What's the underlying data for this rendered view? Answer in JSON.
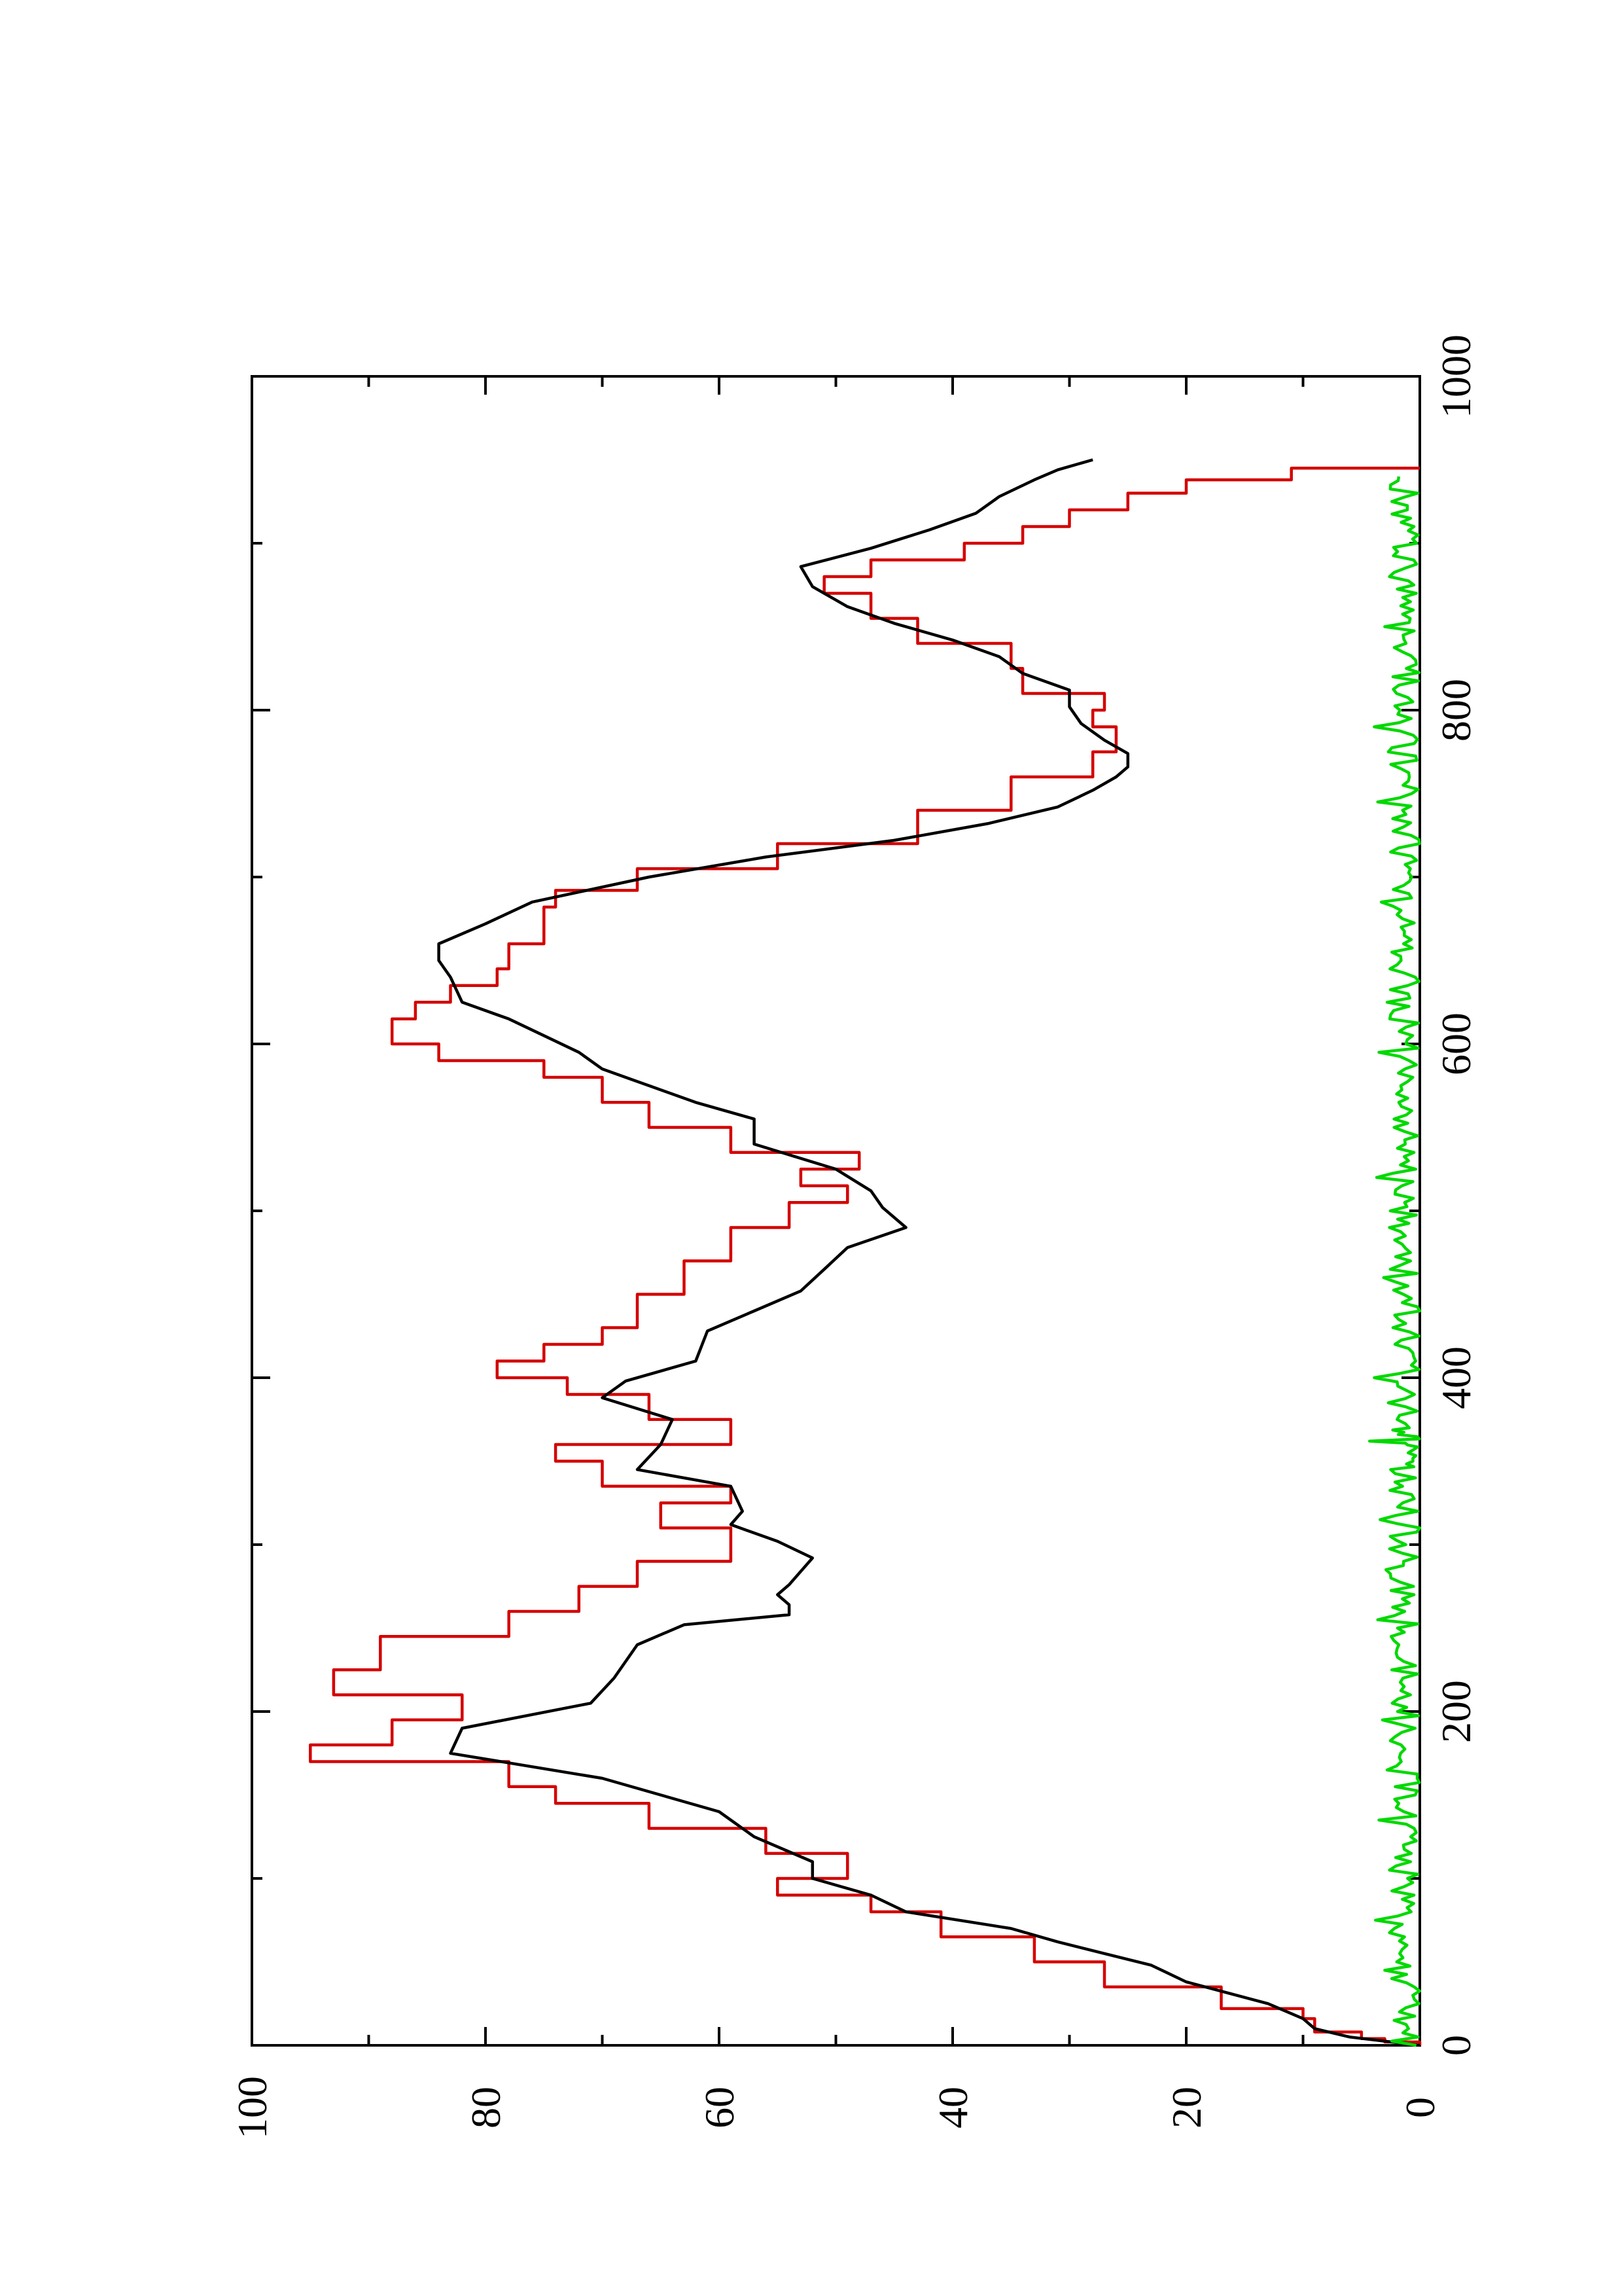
{
  "chart_data": {
    "type": "line",
    "orientation": "rotated-90-counterclockwise",
    "title": "",
    "xlabel": "",
    "ylabel": "",
    "xlim": [
      0,
      1000
    ],
    "ylim": [
      0,
      100
    ],
    "x_ticks": [
      0,
      200,
      400,
      600,
      800,
      1000
    ],
    "x_tick_labels": [
      "0",
      "200",
      "400",
      "600",
      "800",
      "1000"
    ],
    "x_minor_ticks": [
      100,
      300,
      500,
      700,
      900
    ],
    "y_ticks": [
      0,
      20,
      40,
      60,
      80,
      100
    ],
    "y_tick_labels": [
      "0",
      "20",
      "40",
      "60",
      "80",
      "100"
    ],
    "y_minor_ticks": [
      10,
      30,
      50,
      70,
      90
    ],
    "grid": false,
    "legend": "none",
    "series": [
      {
        "color": "#d40000",
        "style": "step",
        "points": [
          [
            0,
            0
          ],
          [
            2,
            3
          ],
          [
            4,
            5
          ],
          [
            8,
            9
          ],
          [
            16,
            10
          ],
          [
            22,
            17
          ],
          [
            35,
            27
          ],
          [
            50,
            33
          ],
          [
            65,
            41
          ],
          [
            80,
            47
          ],
          [
            90,
            55
          ],
          [
            100,
            49
          ],
          [
            115,
            56
          ],
          [
            130,
            66
          ],
          [
            145,
            74
          ],
          [
            155,
            78
          ],
          [
            170,
            95
          ],
          [
            180,
            88
          ],
          [
            195,
            82
          ],
          [
            210,
            93
          ],
          [
            225,
            89
          ],
          [
            245,
            78
          ],
          [
            260,
            72
          ],
          [
            275,
            67
          ],
          [
            290,
            59
          ],
          [
            300,
            59
          ],
          [
            310,
            65
          ],
          [
            325,
            59
          ],
          [
            335,
            70
          ],
          [
            350,
            74
          ],
          [
            360,
            59
          ],
          [
            375,
            66
          ],
          [
            390,
            73
          ],
          [
            400,
            79
          ],
          [
            410,
            75
          ],
          [
            420,
            70
          ],
          [
            430,
            67
          ],
          [
            440,
            67
          ],
          [
            450,
            63
          ],
          [
            470,
            59
          ],
          [
            485,
            59
          ],
          [
            490,
            54
          ],
          [
            505,
            49
          ],
          [
            515,
            53
          ],
          [
            525,
            48
          ],
          [
            535,
            59
          ],
          [
            550,
            66
          ],
          [
            565,
            70
          ],
          [
            580,
            75
          ],
          [
            590,
            84
          ],
          [
            600,
            88
          ],
          [
            615,
            86
          ],
          [
            625,
            83
          ],
          [
            635,
            79
          ],
          [
            645,
            78
          ],
          [
            660,
            75
          ],
          [
            670,
            75
          ],
          [
            682,
            74
          ],
          [
            692,
            67
          ],
          [
            705,
            55
          ],
          [
            720,
            43
          ],
          [
            740,
            35
          ],
          [
            760,
            28
          ],
          [
            775,
            26
          ],
          [
            790,
            28
          ],
          [
            800,
            27
          ],
          [
            810,
            34
          ],
          [
            825,
            35
          ],
          [
            840,
            43
          ],
          [
            855,
            47
          ],
          [
            870,
            51
          ],
          [
            880,
            47
          ],
          [
            890,
            39
          ],
          [
            900,
            34
          ],
          [
            910,
            30
          ],
          [
            920,
            25
          ],
          [
            930,
            20
          ],
          [
            938,
            11
          ],
          [
            945,
            0
          ]
        ]
      },
      {
        "color": "#000000",
        "style": "line",
        "points": [
          [
            0,
            0
          ],
          [
            5,
            6
          ],
          [
            10,
            9
          ],
          [
            16,
            10
          ],
          [
            25,
            13
          ],
          [
            38,
            20
          ],
          [
            48,
            23
          ],
          [
            55,
            27
          ],
          [
            62,
            31
          ],
          [
            70,
            35
          ],
          [
            80,
            44
          ],
          [
            90,
            47
          ],
          [
            100,
            52
          ],
          [
            110,
            52
          ],
          [
            125,
            57
          ],
          [
            140,
            60
          ],
          [
            160,
            70
          ],
          [
            175,
            83
          ],
          [
            190,
            82
          ],
          [
            205,
            71
          ],
          [
            220,
            69
          ],
          [
            240,
            67
          ],
          [
            252,
            63
          ],
          [
            258,
            54
          ],
          [
            264,
            54
          ],
          [
            270,
            55
          ],
          [
            276,
            54
          ],
          [
            284,
            53
          ],
          [
            292,
            52
          ],
          [
            302,
            55
          ],
          [
            312,
            59
          ],
          [
            320,
            58
          ],
          [
            335,
            59
          ],
          [
            345,
            67
          ],
          [
            360,
            65
          ],
          [
            375,
            64
          ],
          [
            388,
            70
          ],
          [
            398,
            68
          ],
          [
            410,
            62
          ],
          [
            428,
            61
          ],
          [
            440,
            57
          ],
          [
            452,
            53
          ],
          [
            465,
            51
          ],
          [
            478,
            49
          ],
          [
            490,
            44
          ],
          [
            502,
            46
          ],
          [
            512,
            47
          ],
          [
            525,
            50
          ],
          [
            540,
            57
          ],
          [
            555,
            57
          ],
          [
            565,
            62
          ],
          [
            575,
            66
          ],
          [
            585,
            70
          ],
          [
            595,
            72
          ],
          [
            605,
            75
          ],
          [
            615,
            78
          ],
          [
            625,
            82
          ],
          [
            640,
            83
          ],
          [
            650,
            84
          ],
          [
            660,
            84
          ],
          [
            672,
            80
          ],
          [
            685,
            76
          ],
          [
            700,
            66
          ],
          [
            712,
            56
          ],
          [
            722,
            45
          ],
          [
            732,
            37
          ],
          [
            742,
            31
          ],
          [
            752,
            28
          ],
          [
            760,
            26
          ],
          [
            766,
            25
          ],
          [
            774,
            25
          ],
          [
            782,
            27
          ],
          [
            792,
            29
          ],
          [
            802,
            30
          ],
          [
            812,
            30
          ],
          [
            822,
            34
          ],
          [
            832,
            36
          ],
          [
            842,
            40
          ],
          [
            852,
            45
          ],
          [
            862,
            49
          ],
          [
            874,
            52
          ],
          [
            886,
            53
          ],
          [
            897,
            47
          ],
          [
            908,
            42
          ],
          [
            918,
            38
          ],
          [
            928,
            36
          ],
          [
            938,
            33
          ],
          [
            944,
            31
          ],
          [
            950,
            28
          ]
        ]
      },
      {
        "color": "#00d800",
        "style": "noise",
        "points": [
          [
            0,
            0.3
          ],
          [
            15,
            2.2
          ],
          [
            30,
            0.6
          ],
          [
            45,
            3.0
          ],
          [
            60,
            1.1
          ],
          [
            75,
            3.8
          ],
          [
            90,
            0.5
          ],
          [
            105,
            2.6
          ],
          [
            120,
            1.4
          ],
          [
            135,
            3.5
          ],
          [
            150,
            0.4
          ],
          [
            165,
            2.8
          ],
          [
            180,
            1.6
          ],
          [
            195,
            3.2
          ],
          [
            210,
            0.8
          ],
          [
            225,
            2.4
          ],
          [
            240,
            1.8
          ],
          [
            255,
            3.6
          ],
          [
            270,
            0.5
          ],
          [
            285,
            2.9
          ],
          [
            300,
            1.2
          ],
          [
            315,
            3.4
          ],
          [
            330,
            0.7
          ],
          [
            345,
            2.5
          ],
          [
            355,
            1.0
          ],
          [
            362,
            4.3
          ],
          [
            370,
            0.9
          ],
          [
            385,
            2.7
          ],
          [
            400,
            3.9
          ],
          [
            415,
            0.6
          ],
          [
            430,
            2.3
          ],
          [
            445,
            1.5
          ],
          [
            460,
            3.1
          ],
          [
            475,
            0.8
          ],
          [
            490,
            2.6
          ],
          [
            505,
            1.3
          ],
          [
            520,
            3.7
          ],
          [
            535,
            0.5
          ],
          [
            550,
            2.2
          ],
          [
            565,
            1.8
          ],
          [
            580,
            0.6
          ],
          [
            595,
            3.5
          ],
          [
            610,
            1.2
          ],
          [
            625,
            2.8
          ],
          [
            640,
            0.4
          ],
          [
            655,
            2.4
          ],
          [
            670,
            1.6
          ],
          [
            685,
            3.3
          ],
          [
            700,
            0.7
          ],
          [
            715,
            2.5
          ],
          [
            730,
            1.4
          ],
          [
            745,
            3.6
          ],
          [
            760,
            0.9
          ],
          [
            775,
            2.7
          ],
          [
            790,
            3.9
          ],
          [
            805,
            0.6
          ],
          [
            820,
            2.3
          ],
          [
            835,
            1.5
          ],
          [
            850,
            3.0
          ],
          [
            865,
            0.8
          ],
          [
            880,
            2.6
          ],
          [
            895,
            1.9
          ],
          [
            910,
            0.5
          ],
          [
            925,
            2.4
          ],
          [
            940,
            1.8
          ]
        ]
      }
    ]
  }
}
